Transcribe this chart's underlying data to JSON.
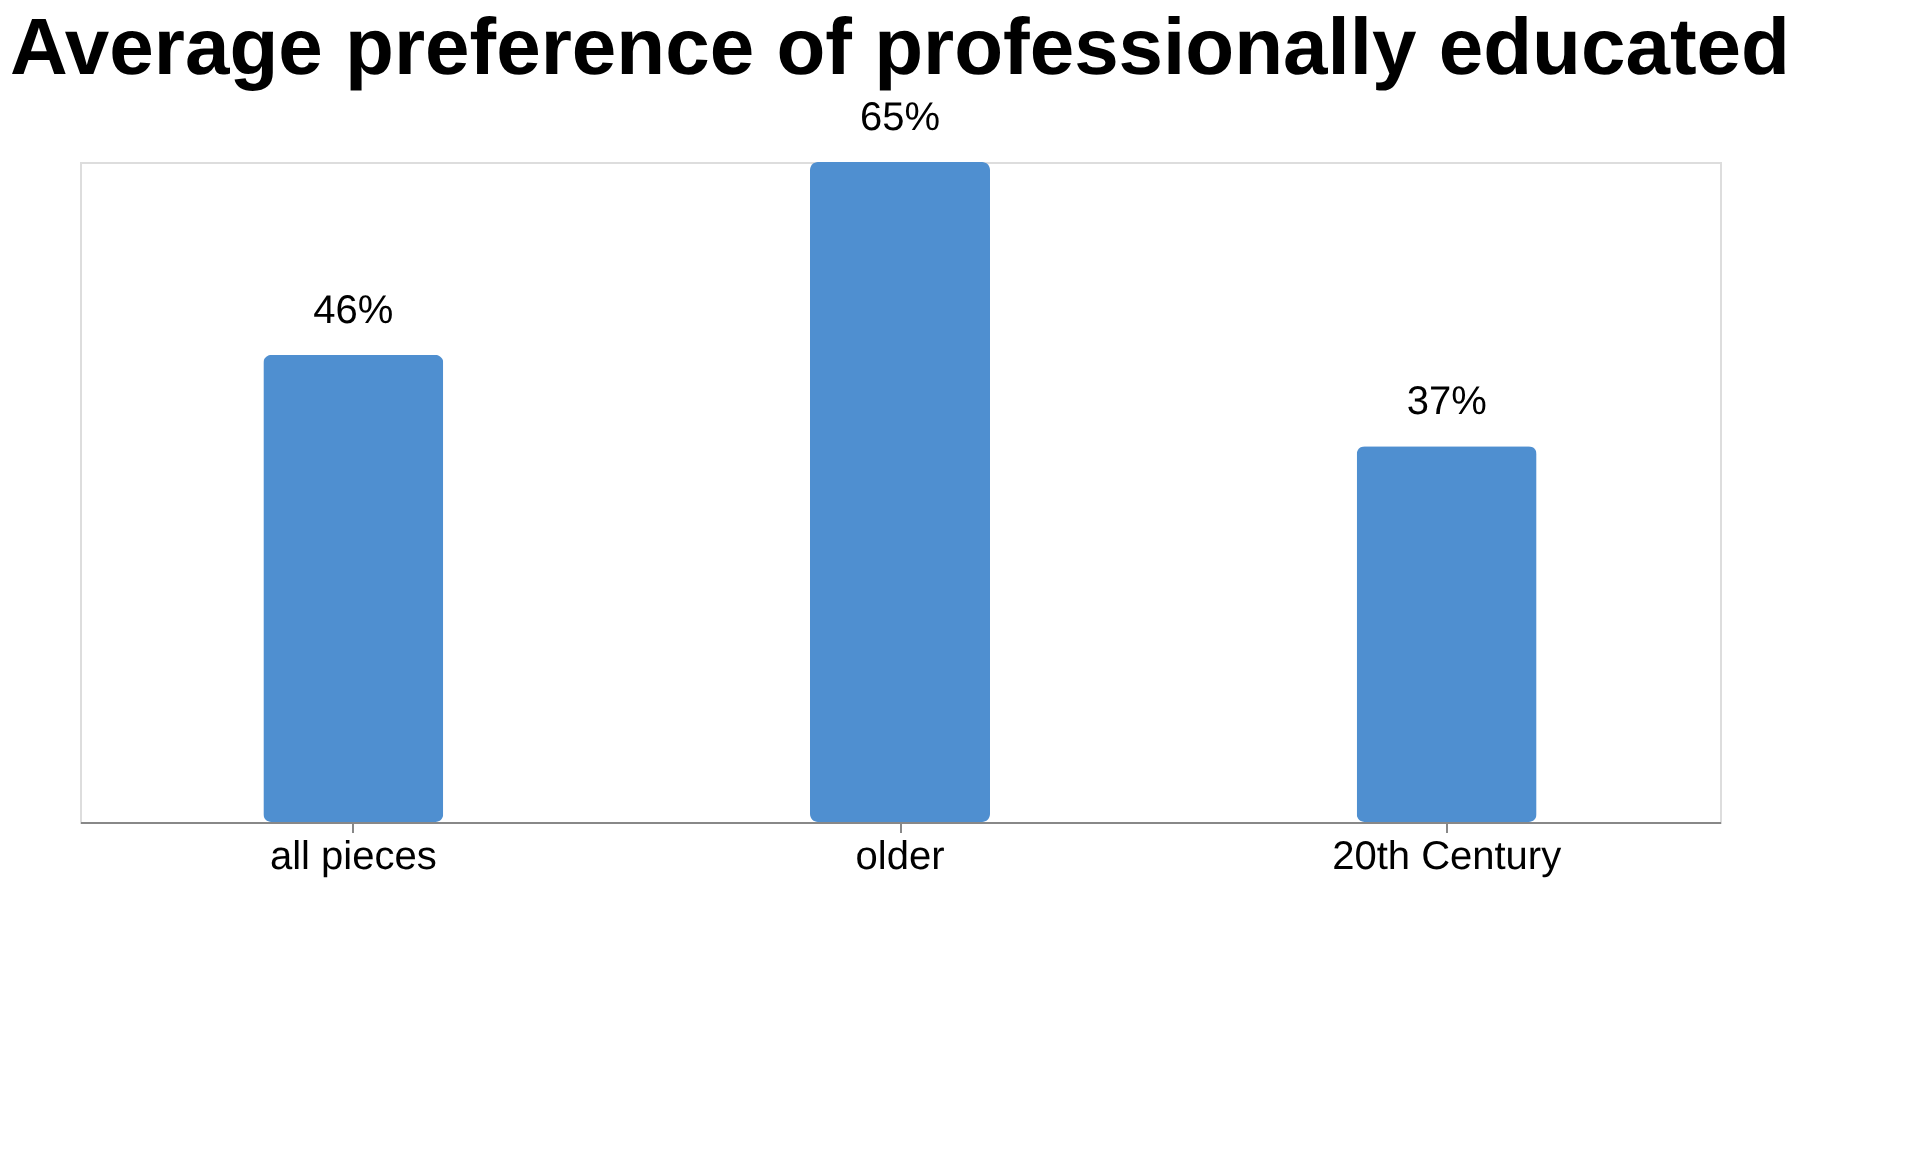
{
  "chart_data": {
    "type": "bar",
    "title": "Average preference of professionally educated",
    "categories": [
      "all pieces",
      "older",
      "20th Century"
    ],
    "values": [
      46,
      65,
      37
    ],
    "value_labels": [
      "46%",
      "65%",
      "37%"
    ],
    "color": "#4f8fd0",
    "grid": false
  }
}
